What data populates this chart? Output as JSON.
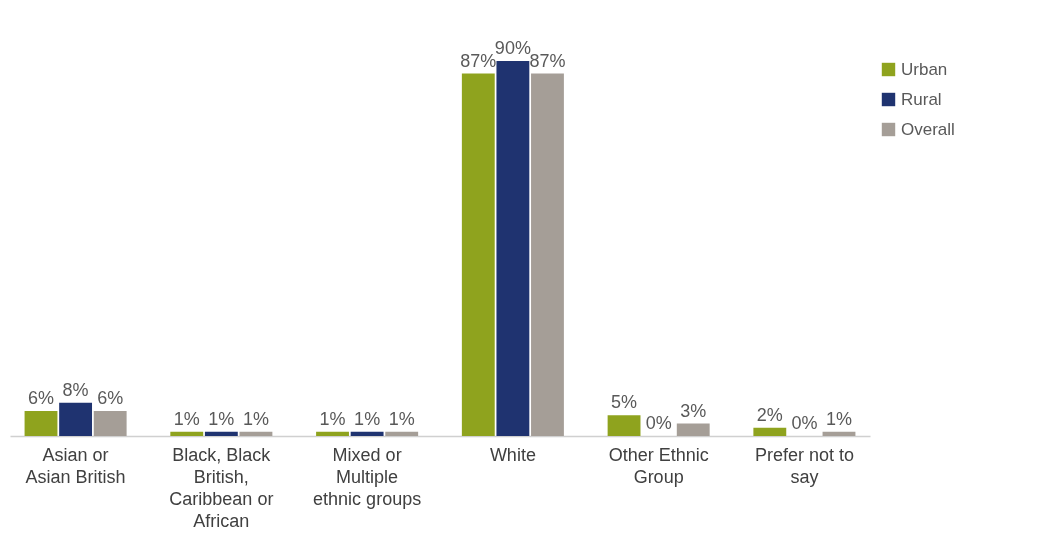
{
  "chart_data": {
    "type": "bar",
    "categories": [
      "Asian or Asian British",
      "Black, Black British, Caribbean or African",
      "Mixed or Multiple ethnic groups",
      "White",
      "Other Ethnic Group",
      "Prefer not to say"
    ],
    "series": [
      {
        "name": "Urban",
        "color": "#8fa31e",
        "values": [
          6,
          1,
          1,
          87,
          5,
          2
        ],
        "value_labels": [
          "6%",
          "1%",
          "1%",
          "87%",
          "5%",
          "2%"
        ]
      },
      {
        "name": "Rural",
        "color": "#1f3370",
        "values": [
          8,
          1,
          1,
          90,
          0,
          0
        ],
        "value_labels": [
          "8%",
          "1%",
          "1%",
          "90%",
          "0%",
          "0%"
        ]
      },
      {
        "name": "Overall",
        "color": "#a59e97",
        "values": [
          6,
          1,
          1,
          87,
          3,
          1
        ],
        "value_labels": [
          "6%",
          "1%",
          "1%",
          "87%",
          "3%",
          "1%"
        ]
      }
    ],
    "legend": "right"
  }
}
